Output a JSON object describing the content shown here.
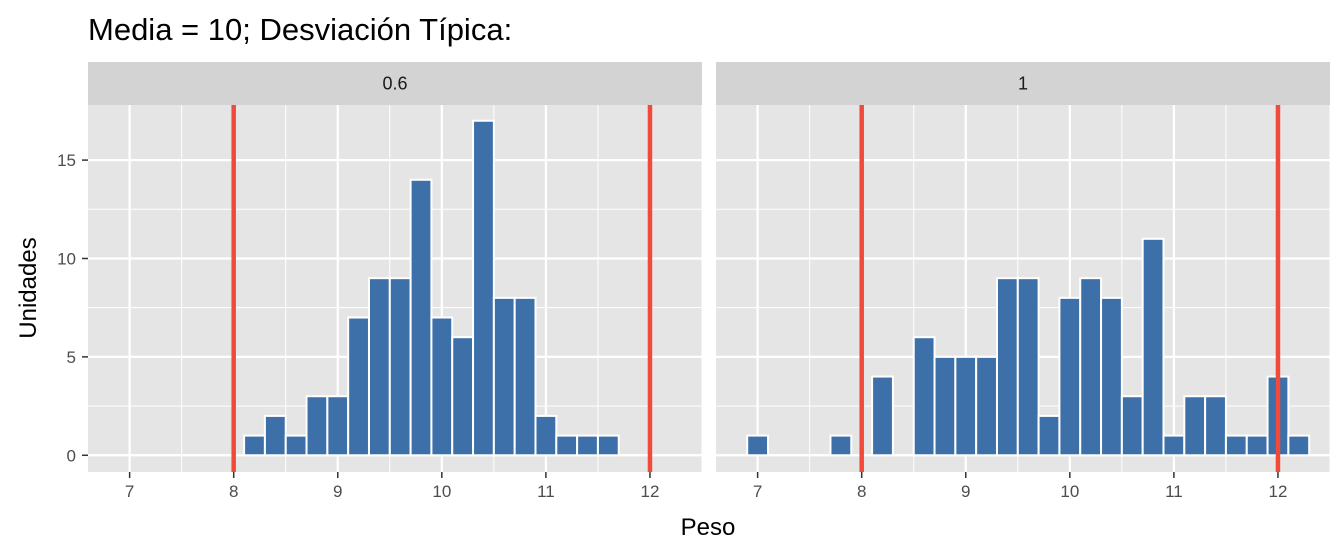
{
  "chart_data": {
    "type": "bar",
    "title": "Media = 10; Desviación Típica:",
    "xlabel": "Peso",
    "ylabel": "Unidades",
    "xlim": [
      6.6,
      12.5
    ],
    "ylim": [
      -0.85,
      17.8
    ],
    "x_ticks": [
      7,
      8,
      9,
      10,
      11,
      12
    ],
    "y_ticks": [
      0,
      5,
      10,
      15
    ],
    "bin_width": 0.2,
    "grid": true,
    "reference_lines": [
      8,
      12
    ],
    "colors": {
      "bar_fill": "#3d6fa8",
      "bar_outline": "#ffffff",
      "reference_line": "#f24a3a",
      "panel_bg": "#e5e5e5",
      "strip_bg": "#d3d3d3",
      "grid": "#ffffff"
    },
    "panels": [
      {
        "label": "0.6",
        "bins": [
          {
            "x": 8.2,
            "count": 1
          },
          {
            "x": 8.4,
            "count": 2
          },
          {
            "x": 8.6,
            "count": 1
          },
          {
            "x": 8.8,
            "count": 3
          },
          {
            "x": 9.0,
            "count": 3
          },
          {
            "x": 9.2,
            "count": 7
          },
          {
            "x": 9.4,
            "count": 9
          },
          {
            "x": 9.6,
            "count": 9
          },
          {
            "x": 9.8,
            "count": 14
          },
          {
            "x": 10.0,
            "count": 7
          },
          {
            "x": 10.2,
            "count": 6
          },
          {
            "x": 10.4,
            "count": 17
          },
          {
            "x": 10.6,
            "count": 8
          },
          {
            "x": 10.8,
            "count": 8
          },
          {
            "x": 11.0,
            "count": 2
          },
          {
            "x": 11.2,
            "count": 1
          },
          {
            "x": 11.4,
            "count": 1
          },
          {
            "x": 11.6,
            "count": 1
          }
        ]
      },
      {
        "label": "1",
        "bins": [
          {
            "x": 7.0,
            "count": 1
          },
          {
            "x": 7.2,
            "count": 0
          },
          {
            "x": 7.4,
            "count": 0
          },
          {
            "x": 7.6,
            "count": 0
          },
          {
            "x": 7.8,
            "count": 1
          },
          {
            "x": 8.0,
            "count": 0
          },
          {
            "x": 8.2,
            "count": 4
          },
          {
            "x": 8.4,
            "count": 0
          },
          {
            "x": 8.6,
            "count": 6
          },
          {
            "x": 8.8,
            "count": 5
          },
          {
            "x": 9.0,
            "count": 5
          },
          {
            "x": 9.2,
            "count": 5
          },
          {
            "x": 9.4,
            "count": 9
          },
          {
            "x": 9.6,
            "count": 9
          },
          {
            "x": 9.8,
            "count": 2
          },
          {
            "x": 10.0,
            "count": 8
          },
          {
            "x": 10.2,
            "count": 9
          },
          {
            "x": 10.4,
            "count": 8
          },
          {
            "x": 10.6,
            "count": 3
          },
          {
            "x": 10.8,
            "count": 11
          },
          {
            "x": 11.0,
            "count": 1
          },
          {
            "x": 11.2,
            "count": 3
          },
          {
            "x": 11.4,
            "count": 3
          },
          {
            "x": 11.6,
            "count": 1
          },
          {
            "x": 11.8,
            "count": 1
          },
          {
            "x": 12.0,
            "count": 4
          },
          {
            "x": 12.2,
            "count": 1
          }
        ]
      }
    ]
  }
}
